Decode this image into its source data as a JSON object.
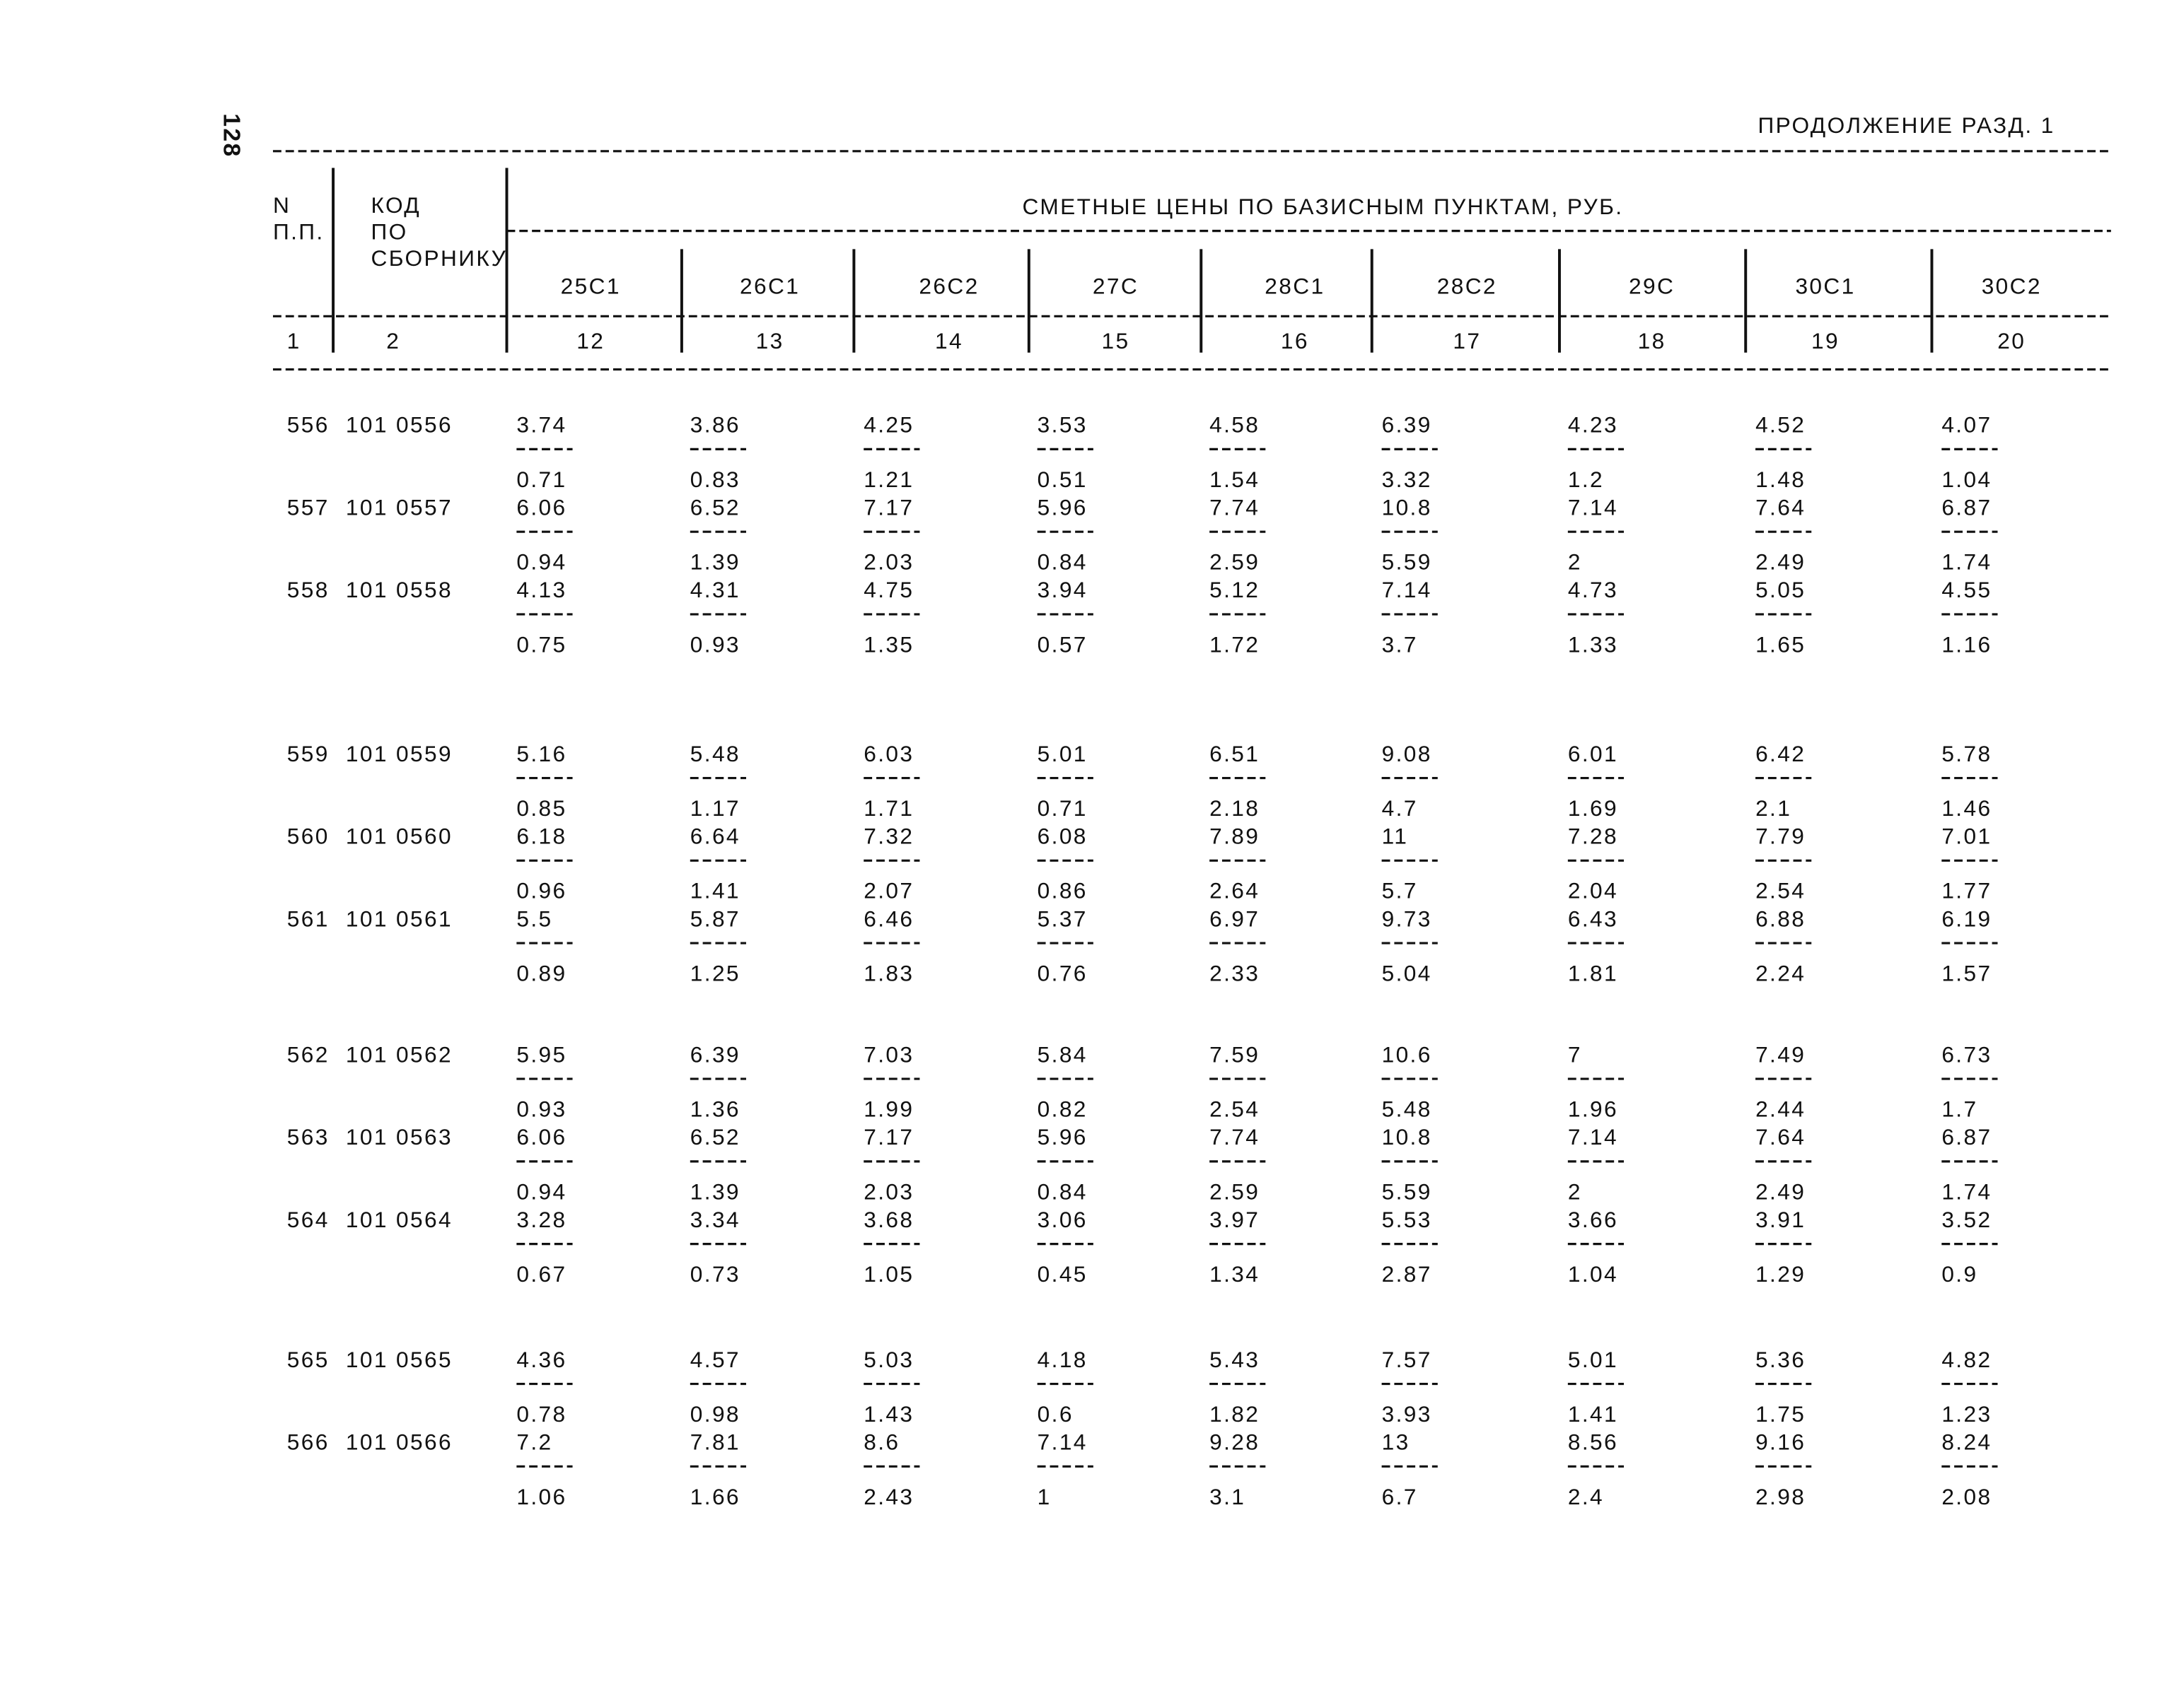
{
  "page_number": "128",
  "header": {
    "continuation": "ПРОДОЛЖЕНИЕ РАЗД. 1"
  },
  "table": {
    "head": {
      "n": [
        "N",
        "П.П."
      ],
      "code": [
        "КОД",
        "ПО",
        "СБОРНИКУ"
      ],
      "prices_title": "СМЕТНЫЕ ЦЕНЫ ПО БАЗИСНЫМ ПУНКТАМ, РУБ.",
      "columns": [
        "25С1",
        "26С1",
        "26С2",
        "27С",
        "28С1",
        "28С2",
        "29С",
        "30С1",
        "30С2"
      ],
      "numbers": [
        "1",
        "2",
        "12",
        "13",
        "14",
        "15",
        "16",
        "17",
        "18",
        "19",
        "20"
      ]
    },
    "groups": [
      {
        "rows": [
          {
            "n": "556",
            "code": "101 0556",
            "top": [
              "3.74",
              "3.86",
              "4.25",
              "3.53",
              "4.58",
              "6.39",
              "4.23",
              "4.52",
              "4.07"
            ],
            "bottom": [
              "0.71",
              "0.83",
              "1.21",
              "0.51",
              "1.54",
              "3.32",
              "1.2",
              "1.48",
              "1.04"
            ]
          },
          {
            "n": "557",
            "code": "101 0557",
            "top": [
              "6.06",
              "6.52",
              "7.17",
              "5.96",
              "7.74",
              "10.8",
              "7.14",
              "7.64",
              "6.87"
            ],
            "bottom": [
              "0.94",
              "1.39",
              "2.03",
              "0.84",
              "2.59",
              "5.59",
              "2",
              "2.49",
              "1.74"
            ]
          },
          {
            "n": "558",
            "code": "101 0558",
            "top": [
              "4.13",
              "4.31",
              "4.75",
              "3.94",
              "5.12",
              "7.14",
              "4.73",
              "5.05",
              "4.55"
            ],
            "bottom": [
              "0.75",
              "0.93",
              "1.35",
              "0.57",
              "1.72",
              "3.7",
              "1.33",
              "1.65",
              "1.16"
            ]
          }
        ]
      },
      {
        "rows": [
          {
            "n": "559",
            "code": "101 0559",
            "top": [
              "5.16",
              "5.48",
              "6.03",
              "5.01",
              "6.51",
              "9.08",
              "6.01",
              "6.42",
              "5.78"
            ],
            "bottom": [
              "0.85",
              "1.17",
              "1.71",
              "0.71",
              "2.18",
              "4.7",
              "1.69",
              "2.1",
              "1.46"
            ]
          },
          {
            "n": "560",
            "code": "101 0560",
            "top": [
              "6.18",
              "6.64",
              "7.32",
              "6.08",
              "7.89",
              "11",
              "7.28",
              "7.79",
              "7.01"
            ],
            "bottom": [
              "0.96",
              "1.41",
              "2.07",
              "0.86",
              "2.64",
              "5.7",
              "2.04",
              "2.54",
              "1.77"
            ]
          },
          {
            "n": "561",
            "code": "101 0561",
            "top": [
              "5.5",
              "5.87",
              "6.46",
              "5.37",
              "6.97",
              "9.73",
              "6.43",
              "6.88",
              "6.19"
            ],
            "bottom": [
              "0.89",
              "1.25",
              "1.83",
              "0.76",
              "2.33",
              "5.04",
              "1.81",
              "2.24",
              "1.57"
            ]
          }
        ]
      },
      {
        "rows": [
          {
            "n": "562",
            "code": "101 0562",
            "top": [
              "5.95",
              "6.39",
              "7.03",
              "5.84",
              "7.59",
              "10.6",
              "7",
              "7.49",
              "6.73"
            ],
            "bottom": [
              "0.93",
              "1.36",
              "1.99",
              "0.82",
              "2.54",
              "5.48",
              "1.96",
              "2.44",
              "1.7"
            ]
          },
          {
            "n": "563",
            "code": "101 0563",
            "top": [
              "6.06",
              "6.52",
              "7.17",
              "5.96",
              "7.74",
              "10.8",
              "7.14",
              "7.64",
              "6.87"
            ],
            "bottom": [
              "0.94",
              "1.39",
              "2.03",
              "0.84",
              "2.59",
              "5.59",
              "2",
              "2.49",
              "1.74"
            ]
          },
          {
            "n": "564",
            "code": "101 0564",
            "top": [
              "3.28",
              "3.34",
              "3.68",
              "3.06",
              "3.97",
              "5.53",
              "3.66",
              "3.91",
              "3.52"
            ],
            "bottom": [
              "0.67",
              "0.73",
              "1.05",
              "0.45",
              "1.34",
              "2.87",
              "1.04",
              "1.29",
              "0.9"
            ]
          }
        ]
      },
      {
        "rows": [
          {
            "n": "565",
            "code": "101 0565",
            "top": [
              "4.36",
              "4.57",
              "5.03",
              "4.18",
              "5.43",
              "7.57",
              "5.01",
              "5.36",
              "4.82"
            ],
            "bottom": [
              "0.78",
              "0.98",
              "1.43",
              "0.6",
              "1.82",
              "3.93",
              "1.41",
              "1.75",
              "1.23"
            ]
          },
          {
            "n": "566",
            "code": "101 0566",
            "top": [
              "7.2",
              "7.81",
              "8.6",
              "7.14",
              "9.28",
              "13",
              "8.56",
              "9.16",
              "8.24"
            ],
            "bottom": [
              "1.06",
              "1.66",
              "2.43",
              "1",
              "3.1",
              "6.7",
              "2.4",
              "2.98",
              "2.08"
            ]
          }
        ]
      }
    ]
  }
}
